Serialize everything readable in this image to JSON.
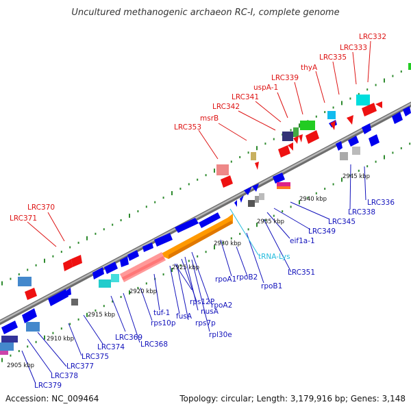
{
  "title": "Uncultured methanogenic archaeon RC-I, complete genome",
  "footer": {
    "accession": "Accession: NC_009464",
    "summary": "Topology: circular; Length: 3,179,916 bp; Genes: 3,148"
  },
  "colors": {
    "backbone": "#8a8a8a",
    "tick": "#2d8a2d",
    "red_label": "#dd1111",
    "blue_label": "#1111bb",
    "trna_label": "#22bbdd",
    "forward_gene": "#0000ee",
    "reverse_gene": "#ee1111",
    "rna_operon": "#ff9900",
    "ribosomal": "#ff9999"
  },
  "scale_labels": [
    "2905 kbp",
    "2910 kbp",
    "2915 kbp",
    "2920 kbp",
    "2925 kbp",
    "2930 kbp",
    "2935 kbp",
    "2940 kbp",
    "2945 kbp"
  ],
  "upper_labels": [
    "LRC332",
    "LRC333",
    "LRC335",
    "thyA",
    "LRC339",
    "uspA-1",
    "LRC341",
    "LRC342",
    "msrB",
    "LRC353",
    "LRC370",
    "LRC371"
  ],
  "lower_labels": [
    "LRC336",
    "LRC338",
    "LRC345",
    "LRC349",
    "eif1a-1",
    "tRNA-Lys",
    "LRC351",
    "rpoB1",
    "rpoB2",
    "rpoA1",
    "rpoA2",
    "nusA",
    "rps12P",
    "rpl30e",
    "rps7p",
    "fusA",
    "tuf-1",
    "rps10p",
    "LRC368",
    "LRC369",
    "LRC374",
    "LRC375",
    "LRC377",
    "LRC378",
    "LRC379"
  ]
}
